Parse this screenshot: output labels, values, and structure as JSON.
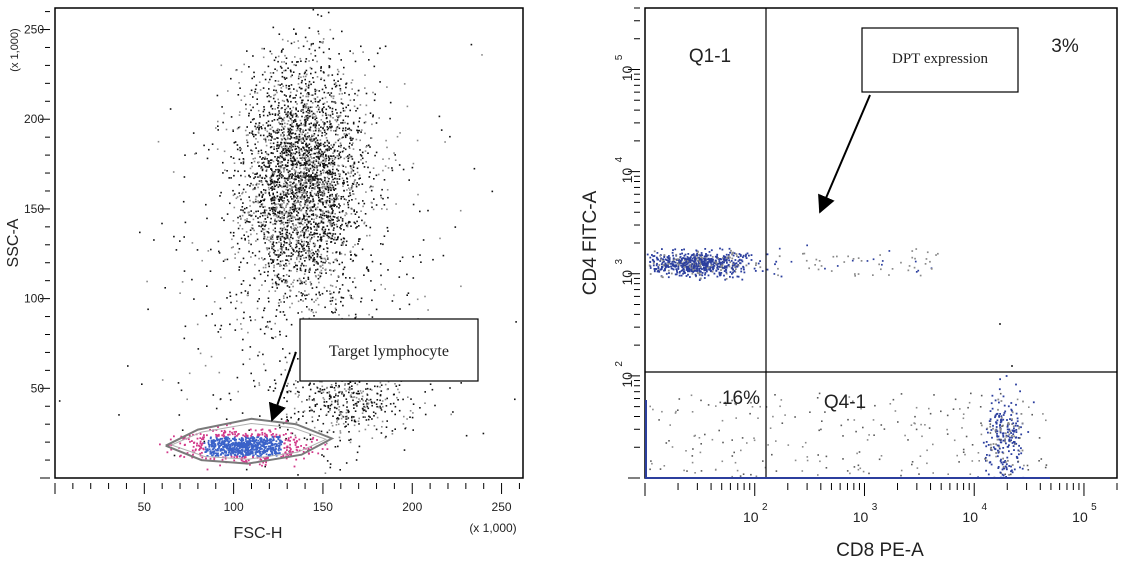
{
  "colors": {
    "dots": "#111111",
    "dots_light": "#8a8a8a",
    "gate": "#7a7a7a",
    "lymph_core": "#3a62c9",
    "lymph_edge": "#d23a8a",
    "blue_dots": "#2c3f9e",
    "frame": "#000000"
  },
  "chart_data": [
    {
      "type": "scatter",
      "title": "",
      "xlabel": "FSC-H",
      "ylabel": "SSC-A",
      "x_multiplier": "(x 1,000)",
      "y_multiplier": "(x 1,000)",
      "xlim": [
        0,
        262
      ],
      "ylim": [
        0,
        262
      ],
      "x_ticks": [
        "50",
        "100",
        "150",
        "200",
        "250"
      ],
      "y_ticks": [
        "50",
        "100",
        "150",
        "200",
        "250"
      ],
      "populations": [
        {
          "name": "",
          "shape": "cloud",
          "center": [
            138,
            168
          ],
          "spread": [
            17,
            32
          ],
          "count": 3200
        },
        {
          "name": "",
          "shape": "cloud",
          "center": [
            165,
            45
          ],
          "spread": [
            18,
            12
          ],
          "count": 450
        },
        {
          "name": "",
          "shape": "cloud",
          "center": [
            140,
            110
          ],
          "spread": [
            40,
            55
          ],
          "count": 650
        }
      ],
      "gate": {
        "name": "lymphocytes",
        "vertices": [
          [
            62,
            18
          ],
          [
            80,
            27
          ],
          [
            110,
            33
          ],
          [
            135,
            30
          ],
          [
            155,
            22
          ],
          [
            138,
            13
          ],
          [
            108,
            8
          ],
          [
            82,
            10
          ],
          [
            62,
            18
          ]
        ]
      },
      "annotation": {
        "text": "Target lymphocyte",
        "arrow_to": [
          122,
          30
        ]
      }
    },
    {
      "type": "scatter",
      "title": "",
      "xlabel": "CD8 PE-A",
      "ylabel": "CD4 FITC-A",
      "x_scale": "log",
      "y_scale": "log",
      "xlim": [
        10,
        200000
      ],
      "ylim": [
        10,
        400000
      ],
      "x_ticks": [
        "10",
        "10",
        "10",
        "10"
      ],
      "x_tick_exp": [
        "2",
        "3",
        "4",
        "5"
      ],
      "y_ticks": [
        "10",
        "10",
        "10",
        "10"
      ],
      "y_tick_exp": [
        "2",
        "3",
        "4",
        "5"
      ],
      "quadrant_split": {
        "x": 300,
        "y": 150
      },
      "quadrants": [
        {
          "label": "Q1-1",
          "percent": ""
        },
        {
          "label": "",
          "percent": "3%"
        },
        {
          "label": "",
          "percent": "16%"
        },
        {
          "label": "Q4-1",
          "percent": ""
        }
      ],
      "populations": [
        {
          "name": "CD4+CD8-",
          "center": [
            70,
            1800
          ],
          "count": 700
        },
        {
          "name": "CD4+CD8+",
          "center": [
            1500,
            1800
          ],
          "count": 60
        },
        {
          "name": "CD4-CD8+",
          "center": [
            28000,
            40
          ],
          "count": 320
        },
        {
          "name": "CD4-CD8-",
          "center": [
            400,
            40
          ],
          "count": 200
        }
      ],
      "annotation": {
        "text": "DPT expression",
        "arrow_to": [
          900,
          4500
        ]
      }
    }
  ]
}
